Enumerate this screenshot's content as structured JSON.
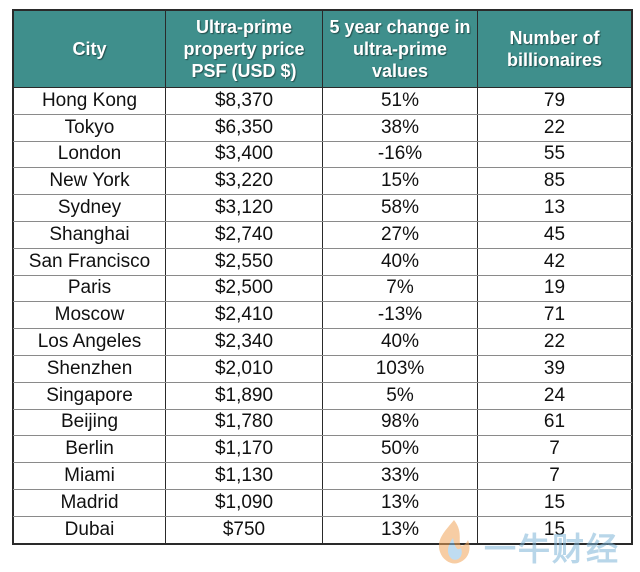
{
  "headers": {
    "city": "City",
    "price": "Ultra-prime property price PSF (USD $)",
    "change": "5 year change in ultra-prime values",
    "billionaires": "Number of billionaires"
  },
  "rows": [
    {
      "city": "Hong Kong",
      "price": "$8,370",
      "change": "51%",
      "billionaires": "79"
    },
    {
      "city": "Tokyo",
      "price": "$6,350",
      "change": "38%",
      "billionaires": "22"
    },
    {
      "city": "London",
      "price": "$3,400",
      "change": "-16%",
      "billionaires": "55"
    },
    {
      "city": "New York",
      "price": "$3,220",
      "change": "15%",
      "billionaires": "85"
    },
    {
      "city": "Sydney",
      "price": "$3,120",
      "change": "58%",
      "billionaires": "13"
    },
    {
      "city": "Shanghai",
      "price": "$2,740",
      "change": "27%",
      "billionaires": "45"
    },
    {
      "city": "San Francisco",
      "price": "$2,550",
      "change": "40%",
      "billionaires": "42"
    },
    {
      "city": "Paris",
      "price": "$2,500",
      "change": "7%",
      "billionaires": "19"
    },
    {
      "city": "Moscow",
      "price": "$2,410",
      "change": "-13%",
      "billionaires": "71"
    },
    {
      "city": "Los Angeles",
      "price": "$2,340",
      "change": "40%",
      "billionaires": "22"
    },
    {
      "city": "Shenzhen",
      "price": "$2,010",
      "change": "103%",
      "billionaires": "39"
    },
    {
      "city": "Singapore",
      "price": "$1,890",
      "change": "5%",
      "billionaires": "24"
    },
    {
      "city": "Beijing",
      "price": "$1,780",
      "change": "98%",
      "billionaires": "61"
    },
    {
      "city": "Berlin",
      "price": "$1,170",
      "change": "50%",
      "billionaires": "7"
    },
    {
      "city": "Miami",
      "price": "$1,130",
      "change": "33%",
      "billionaires": "7"
    },
    {
      "city": "Madrid",
      "price": "$1,090",
      "change": "13%",
      "billionaires": "15"
    },
    {
      "city": "Dubai",
      "price": "$750",
      "change": "13%",
      "billionaires": "15"
    }
  ],
  "watermark": {
    "text": "一牛财经",
    "icon": "flame-logo-icon"
  },
  "colors": {
    "header_bg": "#3f8f8c",
    "header_text": "#ffffff",
    "border": "#2a2a2a"
  }
}
